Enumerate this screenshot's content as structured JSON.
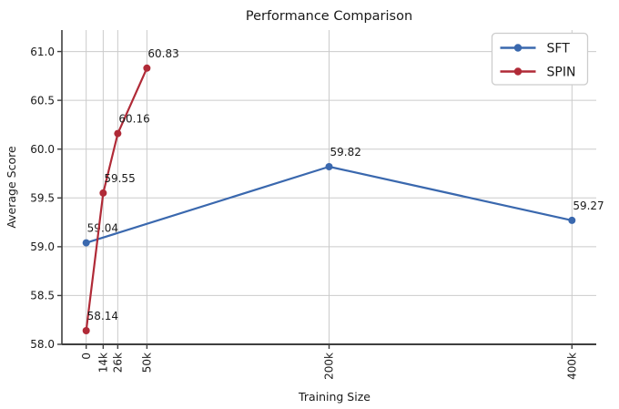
{
  "chart_data": {
    "type": "line",
    "title": "Performance Comparison",
    "xlabel": "Training Size",
    "ylabel": "Average Score",
    "xlim": [
      -20000,
      420000
    ],
    "ylim": [
      58.0,
      61.22
    ],
    "grid": true,
    "legend": {
      "position": "upper right"
    },
    "x_ticks": [
      {
        "value": 0,
        "label": "0"
      },
      {
        "value": 14000,
        "label": "14k"
      },
      {
        "value": 26000,
        "label": "26k"
      },
      {
        "value": 50000,
        "label": "50k"
      },
      {
        "value": 200000,
        "label": "200k"
      },
      {
        "value": 400000,
        "label": "400k"
      }
    ],
    "y_ticks": [
      {
        "value": 58.0,
        "label": "58.0"
      },
      {
        "value": 58.5,
        "label": "58.5"
      },
      {
        "value": 59.0,
        "label": "59.0"
      },
      {
        "value": 59.5,
        "label": "59.5"
      },
      {
        "value": 60.0,
        "label": "60.0"
      },
      {
        "value": 60.5,
        "label": "60.5"
      },
      {
        "value": 61.0,
        "label": "61.0"
      }
    ],
    "series": [
      {
        "name": "SFT",
        "color": "#3A68AE",
        "x": [
          0,
          200000,
          400000
        ],
        "values": [
          59.04,
          59.82,
          59.27
        ],
        "point_labels": [
          "59.04",
          "59.82",
          "59.27"
        ]
      },
      {
        "name": "SPIN",
        "color": "#B02A37",
        "x": [
          0,
          14000,
          26000,
          50000
        ],
        "values": [
          58.14,
          59.55,
          60.16,
          60.83
        ],
        "point_labels": [
          "58.14",
          "59.55",
          "60.16",
          "60.83"
        ]
      }
    ],
    "colors": {
      "grid": "#CBCBCB",
      "spine": "#3F3F3F",
      "text": "#1A1A1A",
      "legend_border": "#CCCCCC",
      "background": "#FFFFFF"
    }
  }
}
